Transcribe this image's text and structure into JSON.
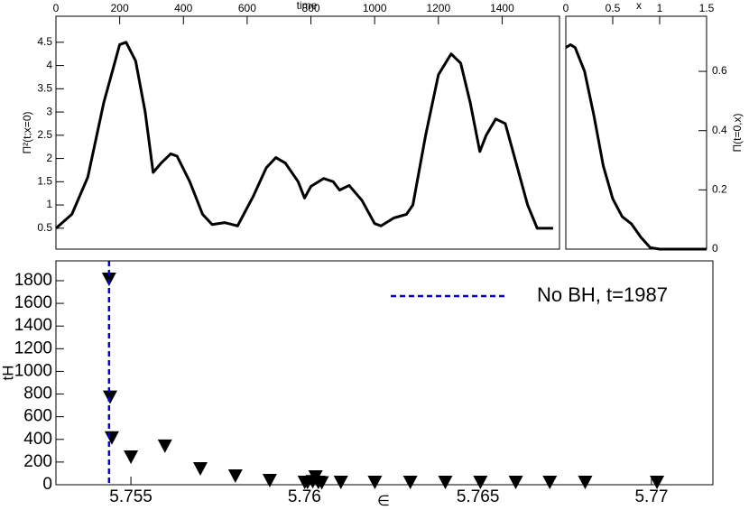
{
  "chart_data": [
    {
      "type": "line",
      "xlabel": "time",
      "ylabel": "Π²(t;x=0)",
      "xaxis_position": "top",
      "yaxis_position": "left",
      "xlim": [
        0,
        1580
      ],
      "ylim": [
        0.05,
        5.06
      ],
      "xticks": [
        0,
        200,
        400,
        600,
        800,
        1000,
        1200,
        1400
      ],
      "yticks": [
        0.5,
        1,
        1.5,
        2,
        2.5,
        3,
        3.5,
        4,
        4.5
      ],
      "series": [
        {
          "color": "#000000",
          "x": [
            0,
            50,
            100,
            150,
            200,
            220,
            250,
            280,
            305,
            330,
            360,
            380,
            420,
            460,
            490,
            530,
            570,
            620,
            660,
            690,
            720,
            760,
            780,
            800,
            840,
            870,
            890,
            920,
            960,
            1000,
            1020,
            1060,
            1100,
            1120,
            1160,
            1200,
            1240,
            1270,
            1300,
            1330,
            1350,
            1380,
            1410,
            1440,
            1480,
            1510,
            1560
          ],
          "values": [
            0.5,
            0.8,
            1.6,
            3.2,
            4.45,
            4.5,
            4.1,
            3.0,
            1.7,
            1.9,
            2.1,
            2.05,
            1.5,
            0.8,
            0.58,
            0.62,
            0.55,
            1.2,
            1.8,
            2.02,
            1.9,
            1.5,
            1.15,
            1.4,
            1.57,
            1.5,
            1.32,
            1.42,
            1.1,
            0.6,
            0.55,
            0.72,
            0.8,
            1.0,
            2.5,
            3.8,
            4.25,
            4.05,
            3.2,
            2.15,
            2.5,
            2.85,
            2.75,
            2.0,
            1.0,
            0.5,
            0.5
          ]
        }
      ]
    },
    {
      "type": "line",
      "xlabel": "x",
      "ylabel": "Π(t=0,x)",
      "xaxis_position": "top",
      "yaxis_position": "right",
      "xlim": [
        0,
        1.5
      ],
      "ylim": [
        0,
        0.786
      ],
      "xticks": [
        0,
        0.5,
        1,
        1.5
      ],
      "yticks": [
        0,
        0.2,
        0.4,
        0.6
      ],
      "series": [
        {
          "color": "#000000",
          "x": [
            0,
            0.05,
            0.1,
            0.2,
            0.3,
            0.4,
            0.5,
            0.6,
            0.7,
            0.8,
            0.9,
            1.0,
            1.5
          ],
          "values": [
            0.68,
            0.69,
            0.68,
            0.6,
            0.45,
            0.28,
            0.17,
            0.11,
            0.085,
            0.04,
            0.005,
            0,
            0
          ]
        }
      ]
    },
    {
      "type": "scatter",
      "xlabel": "∈",
      "ylabel": "tH",
      "xaxis_position": "bottom",
      "yaxis_position": "left",
      "xlim": [
        5.75284,
        5.77177
      ],
      "ylim": [
        0,
        1975
      ],
      "xticks": [
        5.755,
        5.76,
        5.765,
        5.77
      ],
      "yticks": [
        0,
        200,
        400,
        600,
        800,
        1000,
        1200,
        1400,
        1600,
        1800
      ],
      "legend": "upper right",
      "series": [
        {
          "color": "#000000",
          "x": [
            5.75437,
            5.7544,
            5.75445,
            5.755,
            5.75598,
            5.757,
            5.75801,
            5.759,
            5.76001,
            5.76009,
            5.76024,
            5.76032,
            5.7604,
            5.7605,
            5.76105,
            5.76203,
            5.76305,
            5.76406,
            5.76507,
            5.76609,
            5.76707,
            5.76809,
            5.77016
          ],
          "values": [
            1816,
            775,
            416,
            247,
            343,
            143,
            80,
            40,
            24,
            24,
            30,
            72,
            24,
            20,
            24,
            24,
            24,
            24,
            24,
            24,
            24,
            24,
            24
          ]
        }
      ],
      "vline": {
        "name": "No BH, t=1987",
        "color": "#0000dd",
        "x": 5.75437
      }
    }
  ]
}
